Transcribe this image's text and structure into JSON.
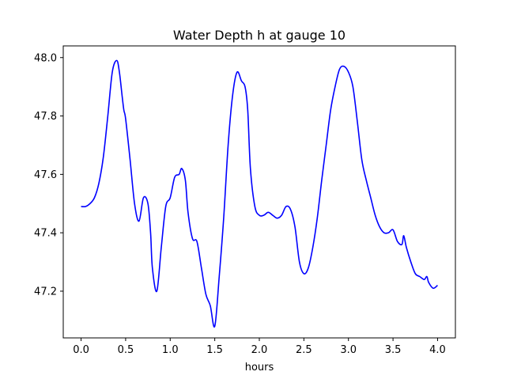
{
  "chart_data": {
    "type": "line",
    "title": "Water Depth h at gauge 10",
    "xlabel": "hours",
    "ylabel": "",
    "xlim": [
      -0.2,
      4.2
    ],
    "ylim": [
      47.04,
      48.04
    ],
    "x_ticks": [
      0.0,
      0.5,
      1.0,
      1.5,
      2.0,
      2.5,
      3.0,
      3.5,
      4.0
    ],
    "x_tick_labels": [
      "0.0",
      "0.5",
      "1.0",
      "1.5",
      "2.0",
      "2.5",
      "3.0",
      "3.5",
      "4.0"
    ],
    "y_ticks": [
      47.2,
      47.4,
      47.6,
      47.8,
      48.0
    ],
    "y_tick_labels": [
      "47.2",
      "47.4",
      "47.6",
      "47.8",
      "48.0"
    ],
    "grid": false,
    "legend": "none",
    "series": [
      {
        "color": "#0000ff",
        "x": [
          0.0,
          0.05,
          0.1,
          0.15,
          0.2,
          0.25,
          0.3,
          0.35,
          0.4,
          0.43,
          0.46,
          0.48,
          0.5,
          0.55,
          0.6,
          0.65,
          0.7,
          0.75,
          0.78,
          0.8,
          0.85,
          0.9,
          0.95,
          1.0,
          1.05,
          1.1,
          1.13,
          1.17,
          1.2,
          1.25,
          1.3,
          1.35,
          1.4,
          1.45,
          1.5,
          1.55,
          1.6,
          1.65,
          1.7,
          1.75,
          1.8,
          1.84,
          1.87,
          1.9,
          1.95,
          2.0,
          2.05,
          2.1,
          2.15,
          2.2,
          2.25,
          2.3,
          2.35,
          2.4,
          2.45,
          2.5,
          2.55,
          2.6,
          2.65,
          2.7,
          2.75,
          2.8,
          2.85,
          2.9,
          2.95,
          3.0,
          3.05,
          3.1,
          3.15,
          3.2,
          3.25,
          3.3,
          3.35,
          3.4,
          3.45,
          3.5,
          3.55,
          3.6,
          3.62,
          3.65,
          3.7,
          3.75,
          3.8,
          3.85,
          3.88,
          3.9,
          3.95,
          4.0
        ],
        "y": [
          47.49,
          47.49,
          47.5,
          47.52,
          47.57,
          47.66,
          47.8,
          47.95,
          47.99,
          47.95,
          47.87,
          47.82,
          47.79,
          47.65,
          47.5,
          47.44,
          47.52,
          47.5,
          47.4,
          47.28,
          47.2,
          47.35,
          47.49,
          47.52,
          47.59,
          47.6,
          47.62,
          47.58,
          47.47,
          47.38,
          47.37,
          47.28,
          47.19,
          47.15,
          47.08,
          47.25,
          47.45,
          47.7,
          47.87,
          47.95,
          47.92,
          47.9,
          47.82,
          47.62,
          47.49,
          47.46,
          47.46,
          47.47,
          47.46,
          47.45,
          47.46,
          47.49,
          47.48,
          47.42,
          47.3,
          47.26,
          47.28,
          47.35,
          47.45,
          47.58,
          47.7,
          47.82,
          47.9,
          47.96,
          47.97,
          47.95,
          47.9,
          47.78,
          47.65,
          47.58,
          47.52,
          47.46,
          47.42,
          47.4,
          47.4,
          47.41,
          47.37,
          47.36,
          47.39,
          47.35,
          47.3,
          47.26,
          47.25,
          47.24,
          47.25,
          47.23,
          47.21,
          47.22
        ]
      }
    ]
  }
}
